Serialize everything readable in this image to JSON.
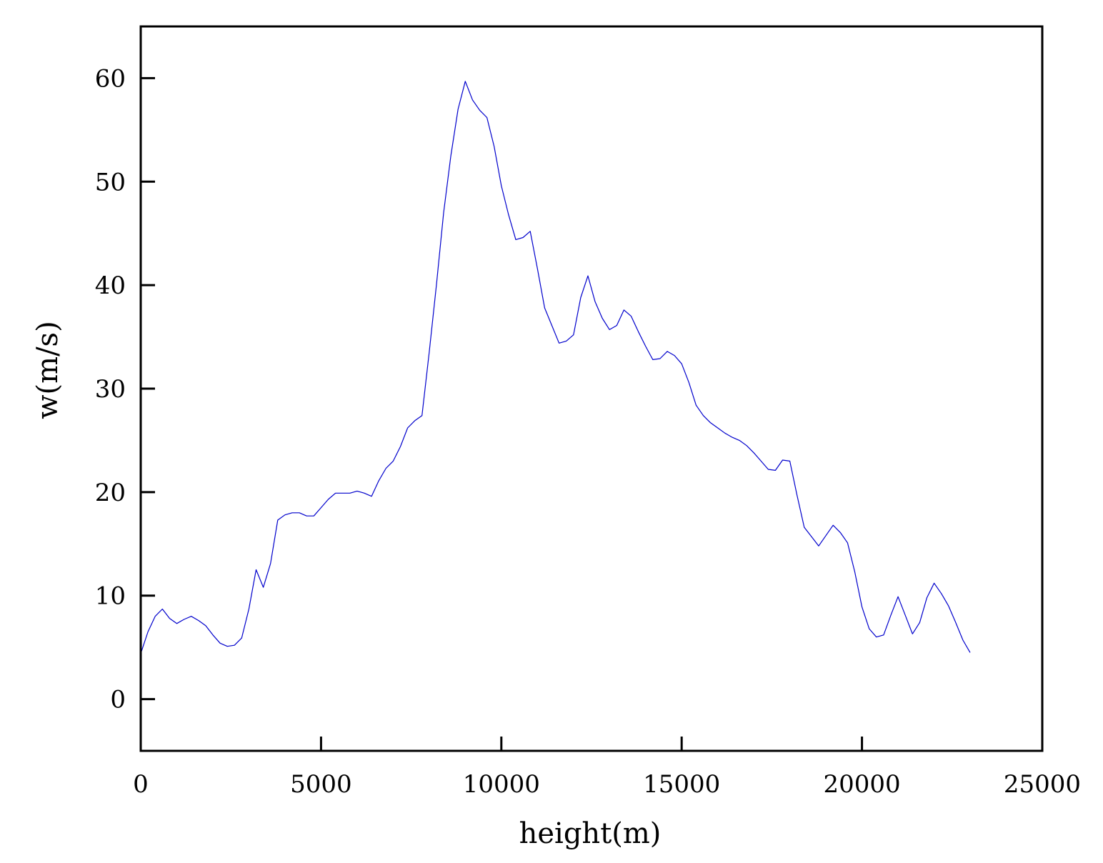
{
  "chart_data": {
    "type": "line",
    "xlabel": "height(m)",
    "ylabel": "w(m/s)",
    "xlim": [
      0,
      25000
    ],
    "ylim": [
      -5,
      65
    ],
    "xticks": [
      0,
      5000,
      10000,
      15000,
      20000,
      25000
    ],
    "xtick_labels": [
      "0",
      "5000",
      "10000",
      "15000",
      "20000",
      "25000"
    ],
    "yticks": [
      0,
      10,
      20,
      30,
      40,
      50,
      60
    ],
    "ytick_labels": [
      "0",
      "10",
      "20",
      "30",
      "40",
      "50",
      "60"
    ],
    "grid": false,
    "colors": {
      "line": "#0000cc",
      "axes": "#000000",
      "background": "#ffffff"
    },
    "series": [
      {
        "x": [
          0,
          200,
          400,
          600,
          800,
          1000,
          1200,
          1400,
          1600,
          1800,
          2000,
          2200,
          2400,
          2600,
          2800,
          3000,
          3200,
          3400,
          3600,
          3800,
          4000,
          4200,
          4400,
          4600,
          4800,
          5000,
          5200,
          5400,
          5600,
          5800,
          6000,
          6200,
          6400,
          6600,
          6800,
          7000,
          7200,
          7400,
          7600,
          7800,
          8000,
          8200,
          8400,
          8600,
          8800,
          9000,
          9200,
          9400,
          9600,
          9800,
          10000,
          10200,
          10400,
          10600,
          10800,
          11000,
          11200,
          11400,
          11600,
          11800,
          12000,
          12200,
          12400,
          12600,
          12800,
          13000,
          13200,
          13400,
          13600,
          13800,
          14000,
          14200,
          14400,
          14600,
          14800,
          15000,
          15200,
          15400,
          15600,
          15800,
          16000,
          16200,
          16400,
          16600,
          16800,
          17000,
          17200,
          17400,
          17600,
          17800,
          18000,
          18200,
          18400,
          18600,
          18800,
          19000,
          19200,
          19400,
          19600,
          19800,
          20000,
          20200,
          20400,
          20600,
          20800,
          21000,
          21200,
          21400,
          21600,
          21800,
          22000,
          22200,
          22400,
          22600,
          22800,
          23000
        ],
        "y": [
          4.4,
          6.5,
          8.0,
          8.7,
          7.8,
          7.3,
          7.7,
          8.0,
          7.6,
          7.1,
          6.2,
          5.4,
          5.1,
          5.2,
          5.9,
          8.7,
          12.5,
          10.8,
          13.1,
          17.3,
          17.8,
          18.0,
          18.0,
          17.7,
          17.7,
          18.5,
          19.3,
          19.9,
          19.9,
          19.9,
          20.1,
          19.9,
          19.6,
          21.1,
          22.3,
          23.0,
          24.4,
          26.2,
          26.9,
          27.4,
          33.5,
          40.0,
          47.0,
          52.5,
          57.0,
          59.7,
          57.9,
          56.9,
          56.2,
          53.4,
          49.6,
          46.8,
          44.4,
          44.6,
          45.2,
          41.6,
          37.8,
          36.1,
          34.4,
          34.6,
          35.2,
          38.8,
          40.9,
          38.4,
          36.8,
          35.7,
          36.1,
          37.6,
          37.0,
          35.5,
          34.1,
          32.8,
          32.9,
          33.6,
          33.2,
          32.4,
          30.6,
          28.4,
          27.4,
          26.7,
          26.2,
          25.7,
          25.3,
          25.0,
          24.5,
          23.8,
          23.0,
          22.2,
          22.1,
          23.1,
          23.0,
          19.7,
          16.6,
          15.7,
          14.8,
          15.8,
          16.8,
          16.1,
          15.1,
          12.3,
          8.9,
          6.8,
          6.0,
          6.2,
          8.1,
          9.9,
          8.1,
          6.3,
          7.4,
          9.8,
          11.2,
          10.2,
          9.0,
          7.4,
          5.7,
          4.5
        ]
      }
    ]
  }
}
